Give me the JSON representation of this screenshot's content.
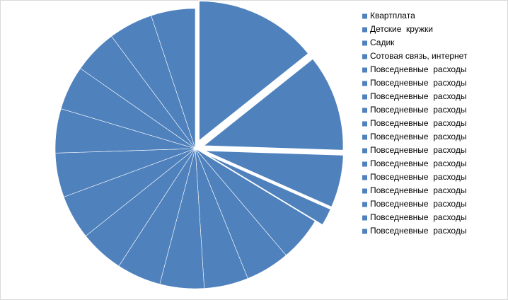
{
  "chart_data": {
    "type": "pie",
    "color": "#4f81bd",
    "categories": [
      "Квартплата",
      "Детские  кружки",
      "Садик",
      "Сотовая связь, интернет",
      "Повседневные  расходы",
      "Повседневные  расходы",
      "Повседневные  расходы",
      "Повседневные  расходы",
      "Повседневные  расходы",
      "Повседневные  расходы",
      "Повседневные  расходы",
      "Повседневные  расходы",
      "Повседневные  расходы",
      "Повседневные  расходы",
      "Повседневные  расходы",
      "Повседневные  расходы",
      "Повседневные  расходы"
    ],
    "values": [
      14,
      11,
      6,
      2,
      5,
      5,
      5,
      5,
      5,
      5,
      5,
      5,
      5,
      5,
      5,
      5,
      5
    ]
  }
}
